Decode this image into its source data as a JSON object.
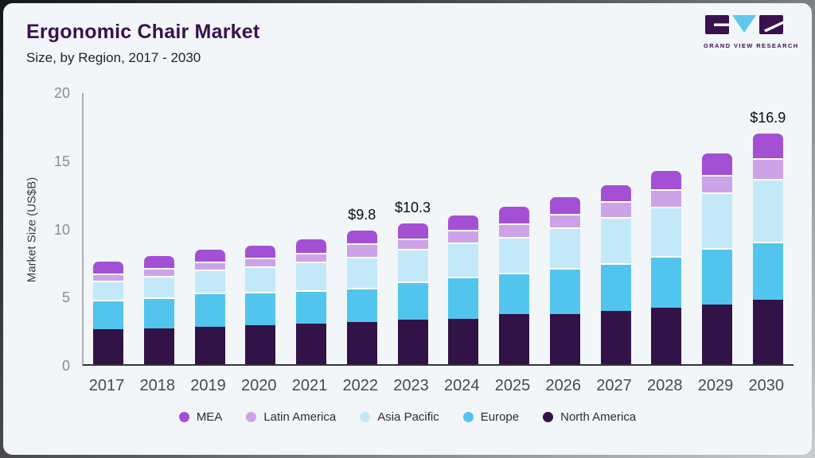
{
  "header": {
    "title": "Ergonomic Chair Market",
    "subtitle": "Size, by Region, 2017 - 2030",
    "logo_text": "GRAND VIEW RESEARCH"
  },
  "colors": {
    "card_background": "#F2F6F9",
    "title": "#3A104E",
    "logo_purple": "#3A104E",
    "logo_cyan": "#5FC8EC",
    "y_axis_line": "#A9AFB5",
    "x_axis_line": "#33343A",
    "segment_gap": "#FFFFFF"
  },
  "chart_data": {
    "type": "bar",
    "stacked": true,
    "title": "Ergonomic Chair Market",
    "subtitle": "Size, by Region, 2017 - 2030",
    "xlabel": "",
    "ylabel": "Market Size (US$B)",
    "ylim": [
      0,
      20
    ],
    "yticks": [
      0,
      5,
      10,
      15,
      20
    ],
    "grid": false,
    "legend_position": "bottom",
    "categories": [
      "2017",
      "2018",
      "2019",
      "2020",
      "2021",
      "2022",
      "2023",
      "2024",
      "2025",
      "2026",
      "2027",
      "2028",
      "2029",
      "2030"
    ],
    "series": [
      {
        "name": "North America",
        "color": "#321347",
        "values": [
          2.55,
          2.6,
          2.75,
          2.85,
          2.95,
          3.1,
          3.25,
          3.35,
          3.7,
          3.7,
          3.9,
          4.15,
          4.4,
          4.75
        ]
      },
      {
        "name": "Europe",
        "color": "#52C5EE",
        "values": [
          2.2,
          2.3,
          2.5,
          2.45,
          2.5,
          2.5,
          2.8,
          3.05,
          3.0,
          3.35,
          3.5,
          3.8,
          4.1,
          4.25
        ]
      },
      {
        "name": "Asia Pacific",
        "color": "#C3E9F8",
        "values": [
          1.4,
          1.55,
          1.7,
          1.85,
          2.1,
          2.3,
          2.4,
          2.55,
          2.65,
          3.0,
          3.4,
          3.6,
          4.1,
          4.6
        ]
      },
      {
        "name": "Latin America",
        "color": "#CDA3E8",
        "values": [
          0.5,
          0.6,
          0.55,
          0.65,
          0.6,
          0.95,
          0.75,
          0.9,
          1.0,
          0.95,
          1.15,
          1.3,
          1.3,
          1.5
        ]
      },
      {
        "name": "MEA",
        "color": "#A450D4",
        "values": [
          0.85,
          0.9,
          0.9,
          0.9,
          1.0,
          0.95,
          1.1,
          1.05,
          1.2,
          1.25,
          1.2,
          1.35,
          1.55,
          1.8
        ]
      }
    ],
    "legend_order": [
      "MEA",
      "Latin America",
      "Asia Pacific",
      "Europe",
      "North America"
    ],
    "totals": [
      7.5,
      7.95,
      8.4,
      8.7,
      9.15,
      9.8,
      10.3,
      10.9,
      11.55,
      12.25,
      13.15,
      14.2,
      15.45,
      16.9
    ],
    "annotations": [
      {
        "category": "2022",
        "label": "$9.8"
      },
      {
        "category": "2023",
        "label": "$10.3"
      },
      {
        "category": "2030",
        "label": "$16.9"
      }
    ]
  }
}
